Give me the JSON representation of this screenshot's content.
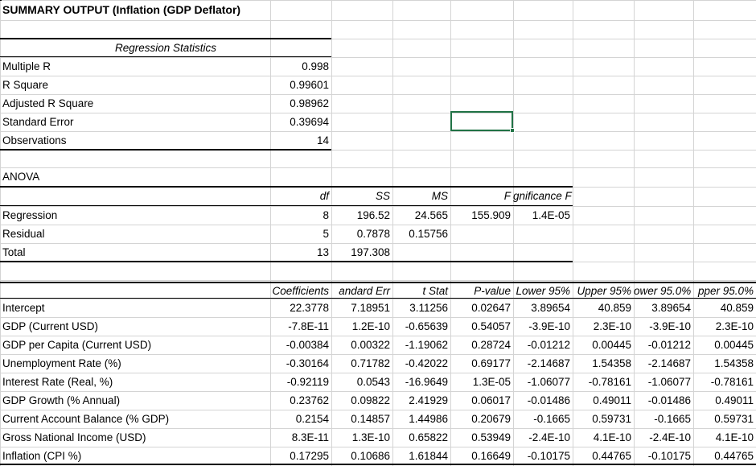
{
  "title": "SUMMARY OUTPUT (Inflation (GDP Deflator)",
  "regstats": {
    "header": "Regression Statistics",
    "rows": [
      {
        "label": "Multiple R",
        "value": "0.998"
      },
      {
        "label": "R Square",
        "value": "0.99601"
      },
      {
        "label": "Adjusted R Square",
        "value": "0.98962"
      },
      {
        "label": "Standard Error",
        "value": "0.39694"
      },
      {
        "label": "Observations",
        "value": "14"
      }
    ]
  },
  "anova": {
    "label": "ANOVA",
    "headers": [
      "df",
      "SS",
      "MS",
      "F",
      "gnificance F"
    ],
    "rows": [
      {
        "label": "Regression",
        "df": "8",
        "ss": "196.52",
        "ms": "24.565",
        "f": "155.909",
        "sig": "1.4E-05"
      },
      {
        "label": "Residual",
        "df": "5",
        "ss": "0.7878",
        "ms": "0.15756",
        "f": "",
        "sig": ""
      },
      {
        "label": "Total",
        "df": "13",
        "ss": "197.308",
        "ms": "",
        "f": "",
        "sig": ""
      }
    ]
  },
  "coef": {
    "headers": [
      "Coefficients",
      "andard Err",
      "t Stat",
      "P-value",
      "Lower 95%",
      "Upper 95%",
      "ower 95.0%",
      "pper 95.0%"
    ],
    "rows": [
      {
        "label": "Intercept",
        "vals": [
          "22.3778",
          "7.18951",
          "3.11256",
          "0.02647",
          "3.89654",
          "40.859",
          "3.89654",
          "40.859"
        ]
      },
      {
        "label": "GDP (Current USD)",
        "vals": [
          "-7.8E-11",
          "1.2E-10",
          "-0.65639",
          "0.54057",
          "-3.9E-10",
          "2.3E-10",
          "-3.9E-10",
          "2.3E-10"
        ]
      },
      {
        "label": "GDP per Capita (Current USD)",
        "vals": [
          "-0.00384",
          "0.00322",
          "-1.19062",
          "0.28724",
          "-0.01212",
          "0.00445",
          "-0.01212",
          "0.00445"
        ]
      },
      {
        "label": "Unemployment Rate (%)",
        "vals": [
          "-0.30164",
          "0.71782",
          "-0.42022",
          "0.69177",
          "-2.14687",
          "1.54358",
          "-2.14687",
          "1.54358"
        ]
      },
      {
        "label": "Interest Rate (Real, %)",
        "vals": [
          "-0.92119",
          "0.0543",
          "-16.9649",
          "1.3E-05",
          "-1.06077",
          "-0.78161",
          "-1.06077",
          "-0.78161"
        ]
      },
      {
        "label": "GDP Growth (% Annual)",
        "vals": [
          "0.23762",
          "0.09822",
          "2.41929",
          "0.06017",
          "-0.01486",
          "0.49011",
          "-0.01486",
          "0.49011"
        ]
      },
      {
        "label": "Current Account Balance (% GDP)",
        "vals": [
          "0.2154",
          "0.14857",
          "1.44986",
          "0.20679",
          "-0.1665",
          "0.59731",
          "-0.1665",
          "0.59731"
        ]
      },
      {
        "label": "Gross National Income (USD)",
        "vals": [
          "8.3E-11",
          "1.3E-10",
          "0.65822",
          "0.53949",
          "-2.4E-10",
          "4.1E-10",
          "-2.4E-10",
          "4.1E-10"
        ]
      },
      {
        "label": "Inflation (CPI %)",
        "vals": [
          "0.17295",
          "0.10686",
          "1.61844",
          "0.16649",
          "-0.10175",
          "0.44765",
          "-0.10175",
          "0.44765"
        ]
      }
    ]
  },
  "colors": {
    "gridline": "#d4d4d4",
    "selection": "#217346"
  }
}
